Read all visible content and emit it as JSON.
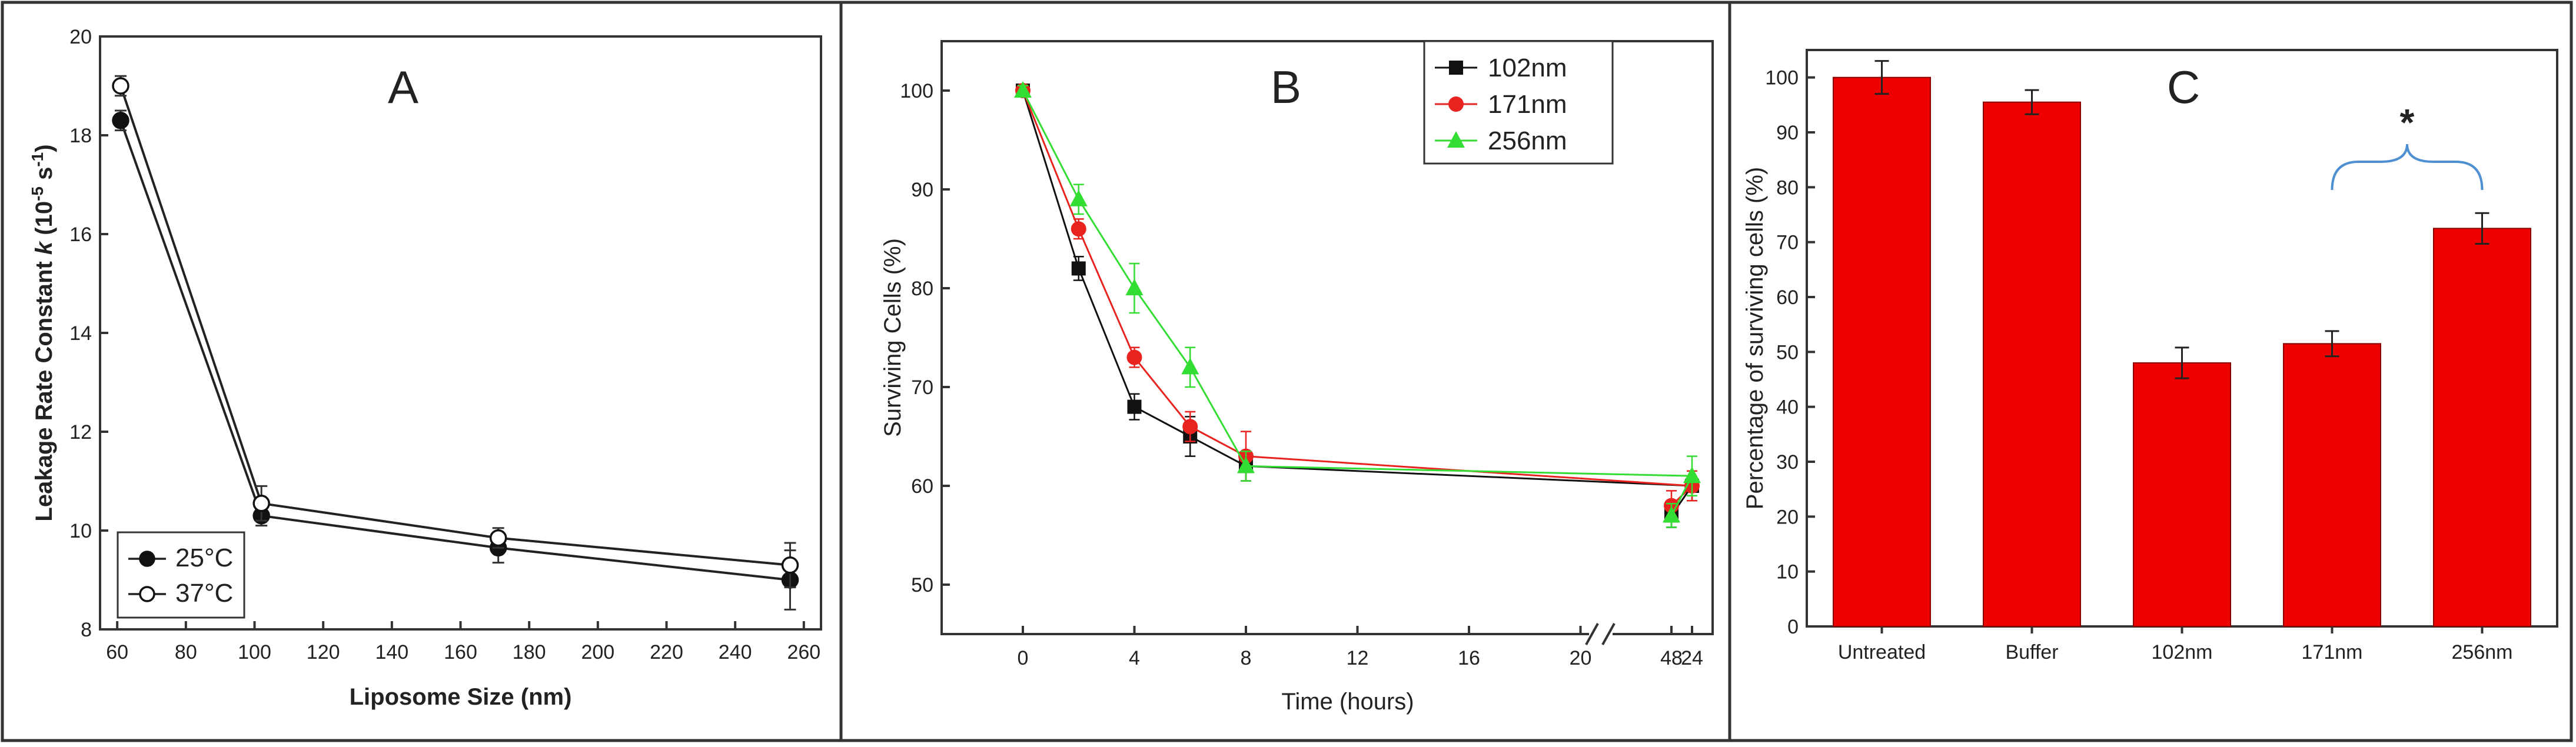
{
  "colors": {
    "black": "#111111",
    "red": "#e8231f",
    "green": "#33dd33",
    "bar_red": "#ee0000",
    "bracket_blue": "#4d8fd1"
  },
  "chart_data": [
    {
      "type": "line",
      "panel": "A",
      "xlabel": "Liposome Size (nm)",
      "ylabel_prefix": "Leakage Rate Constant ",
      "ylabel_k": "k",
      "ylabel_units": " (10",
      "ylabel_sup1": "-5",
      "ylabel_mid": " s",
      "ylabel_sup2": "-1",
      "ylabel_end": ")",
      "xlim": [
        55,
        265
      ],
      "ylim": [
        8,
        20
      ],
      "xticks": [
        60,
        80,
        100,
        120,
        140,
        160,
        180,
        200,
        220,
        240,
        260
      ],
      "yticks": [
        8,
        10,
        12,
        14,
        16,
        18,
        20
      ],
      "legend_position": "bottom-left",
      "series": [
        {
          "name": "25°C",
          "marker": "filled-circle",
          "x": [
            61,
            102,
            171,
            256
          ],
          "y": [
            18.3,
            10.3,
            9.65,
            9.0
          ],
          "err": [
            0.2,
            0.2,
            0.3,
            0.6
          ]
        },
        {
          "name": "37°C",
          "marker": "open-circle",
          "x": [
            61,
            102,
            171,
            256
          ],
          "y": [
            19.0,
            10.55,
            9.85,
            9.3
          ],
          "err": [
            0.2,
            0.35,
            0.2,
            0.45
          ]
        }
      ]
    },
    {
      "type": "line",
      "panel": "B",
      "xlabel": "Time (hours)",
      "ylabel": "Surviving Cells (%)",
      "ylim": [
        45,
        105
      ],
      "xticks": [
        "0",
        "4",
        "8",
        "12",
        "16",
        "20",
        "24",
        "48"
      ],
      "yticks": [
        50,
        60,
        70,
        80,
        90,
        100
      ],
      "axis_break": "between 24 and 48",
      "legend_position": "top-right",
      "series": [
        {
          "name": "102nm",
          "marker": "square",
          "x": [
            0,
            2,
            4,
            6,
            8,
            24,
            48
          ],
          "y": [
            100,
            82,
            68,
            65,
            62,
            60,
            57
          ],
          "err": [
            0.5,
            1.2,
            1.3,
            2,
            1.5,
            1.5,
            1.2
          ]
        },
        {
          "name": "171nm",
          "marker": "circle",
          "x": [
            0,
            2,
            4,
            6,
            8,
            24,
            48
          ],
          "y": [
            100,
            86,
            73,
            66,
            63,
            60,
            58
          ],
          "err": [
            0.5,
            1,
            1,
            1.5,
            2.5,
            1.5,
            1.5
          ]
        },
        {
          "name": "256nm",
          "marker": "triangle",
          "x": [
            0,
            2,
            4,
            6,
            8,
            24,
            48
          ],
          "y": [
            100,
            89,
            80,
            72,
            62,
            61,
            57
          ],
          "err": [
            0.5,
            1.5,
            2.5,
            2,
            1.5,
            2,
            1.2
          ]
        }
      ]
    },
    {
      "type": "bar",
      "panel": "C",
      "ylabel": "Percentage of surviving cells (%)",
      "categories": [
        "Untreated",
        "Buffer",
        "102nm",
        "171nm",
        "256nm"
      ],
      "values": [
        100,
        95.5,
        48,
        51.5,
        72.5
      ],
      "err": [
        3,
        2.2,
        2.8,
        2.3,
        2.8
      ],
      "ylim": [
        0,
        105
      ],
      "yticks": [
        0,
        10,
        20,
        30,
        40,
        50,
        60,
        70,
        80,
        90,
        100
      ],
      "annotation": "*"
    }
  ]
}
